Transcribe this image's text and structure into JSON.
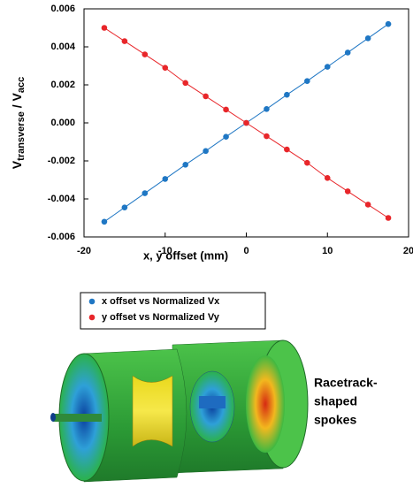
{
  "chart_data": {
    "type": "scatter",
    "xlabel": "x, y offset (mm)",
    "ylabel": [
      "V",
      "transverse",
      " / V",
      "acc"
    ],
    "x": [
      -17.5,
      -15,
      -12.5,
      -10,
      -7.5,
      -5,
      -2.5,
      0,
      2.5,
      5,
      7.5,
      10,
      12.5,
      15,
      17.5
    ],
    "series": [
      {
        "name": "x offset vs Normalized Vx",
        "color": "#1f77c4",
        "values": [
          -0.0052,
          -0.00445,
          -0.0037,
          -0.00295,
          -0.0022,
          -0.00148,
          -0.00073,
          0,
          0.00073,
          0.00148,
          0.0022,
          0.00295,
          0.0037,
          0.00445,
          0.0052
        ]
      },
      {
        "name": "y offset vs Normalized Vy",
        "color": "#e8262a",
        "values": [
          0.005,
          0.0043,
          0.0036,
          0.0029,
          0.0021,
          0.0014,
          0.0007,
          0,
          -0.0007,
          -0.0014,
          -0.0021,
          -0.0029,
          -0.0036,
          -0.0043,
          -0.005
        ]
      }
    ],
    "xlim": [
      -20,
      20
    ],
    "xticks": [
      -20,
      -10,
      0,
      10,
      20
    ],
    "ylim": [
      -0.006,
      0.006
    ],
    "yticks": [
      -0.006,
      -0.004,
      -0.002,
      {
        "value": 0,
        "label": "0.000"
      },
      0.002,
      0.004,
      0.006
    ],
    "annotation": [
      "Racetrack-",
      "shaped",
      "spokes"
    ]
  }
}
